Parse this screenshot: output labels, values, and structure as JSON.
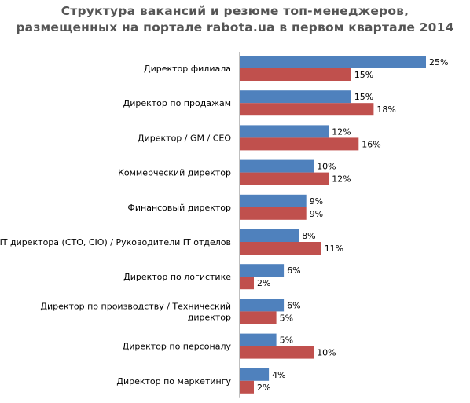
{
  "chart_data": {
    "type": "bar",
    "orientation": "horizontal",
    "title": "Структура вакансий  и резюме топ-менеджеров, размещенных на портале rabota.ua в первом квартале 2014",
    "title_lines": [
      "Структура вакансий  и резюме топ-менеджеров,",
      "размещенных на портале rabota.ua в первом квартале 2014"
    ],
    "xlabel": "",
    "ylabel": "",
    "value_suffix": "%",
    "xlim": [
      0,
      25
    ],
    "grid": false,
    "legend": "none",
    "categories": [
      [
        "Директор филиала"
      ],
      [
        "Директор по продажам"
      ],
      [
        "Директор / GM / CEO"
      ],
      [
        "Коммерческий директор"
      ],
      [
        "Финансовый директор"
      ],
      [
        "IT директора (CTO, CIO) / Руководители IT отделов"
      ],
      [
        "Директор по логистике"
      ],
      [
        "Директор по производству / Технический",
        "директор"
      ],
      [
        "Директор по персоналу"
      ],
      [
        "Директор по маркетингу"
      ]
    ],
    "series": [
      {
        "color": "#4f81bd",
        "values": [
          25,
          15,
          12,
          10,
          9,
          8,
          6,
          6,
          5,
          4
        ]
      },
      {
        "color": "#c0504d",
        "values": [
          15,
          18,
          16,
          12,
          9,
          11,
          2,
          5,
          10,
          2
        ]
      }
    ]
  }
}
